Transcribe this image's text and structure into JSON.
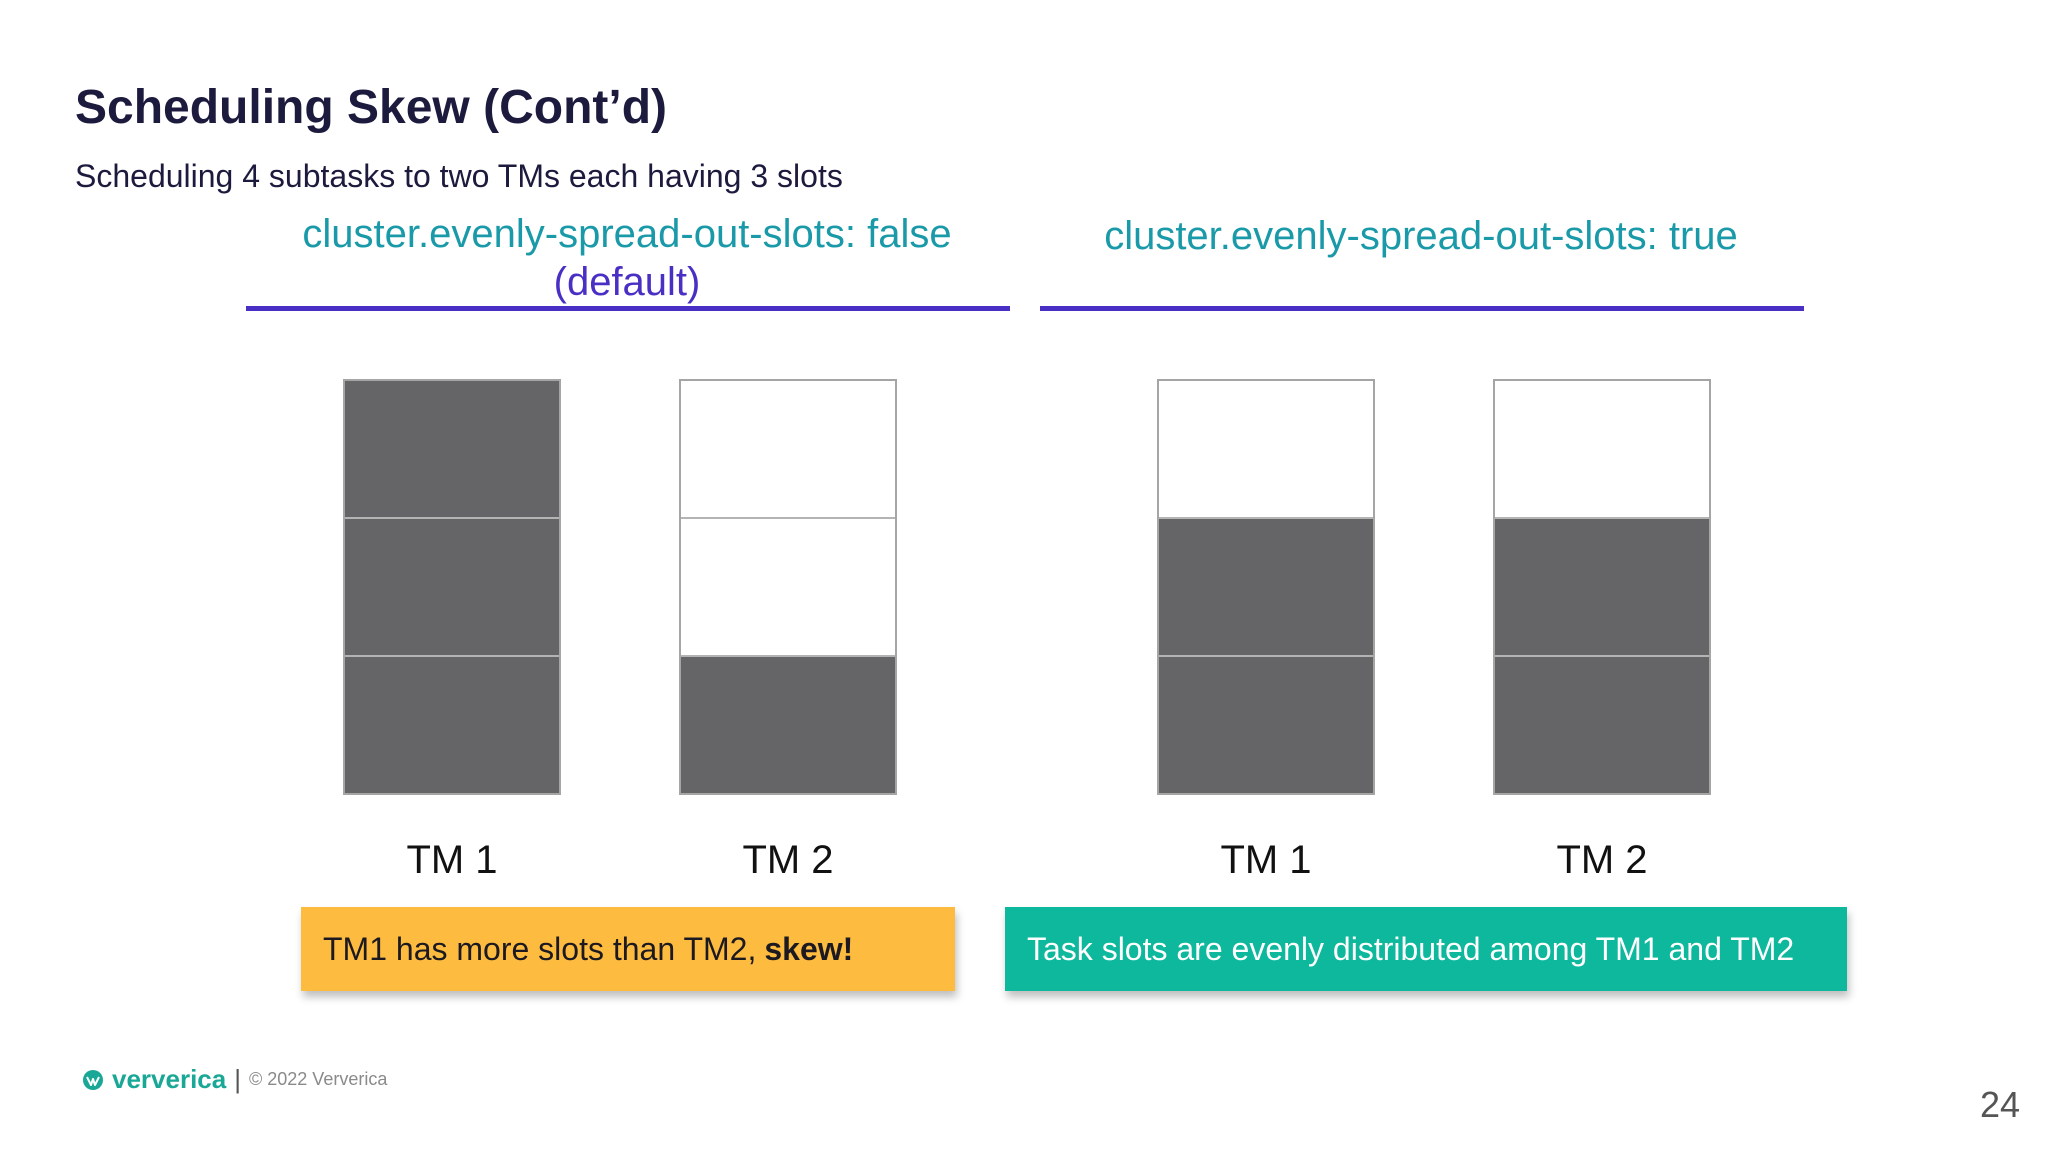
{
  "slide": {
    "title": "Scheduling Skew (Cont’d)",
    "subtitle": "Scheduling 4 subtasks to two TMs each having 3 slots",
    "page_number": "24"
  },
  "left": {
    "config_line1": "cluster.evenly-spread-out-slots: false",
    "config_line2": "(default)",
    "tm1_label": "TM 1",
    "tm2_label": "TM 2",
    "callout_text": "TM1 has more slots than TM2,",
    "callout_emphasis": "skew!",
    "callout_color": "#fdbb40",
    "tm1_slots": [
      "used",
      "used",
      "used"
    ],
    "tm2_slots": [
      "free",
      "free",
      "used"
    ]
  },
  "right": {
    "config_line1": "cluster.evenly-spread-out-slots: true",
    "tm1_label": "TM 1",
    "tm2_label": "TM 2",
    "callout_text": "Task slots  are evenly distributed among TM1 and TM2",
    "callout_color": "#0db89d",
    "tm1_slots": [
      "free",
      "used",
      "used"
    ],
    "tm2_slots": [
      "free",
      "used",
      "used"
    ]
  },
  "footer": {
    "brand": "ververica",
    "separator": "|",
    "copyright": "© 2022 Ververica",
    "brand_icon": "ververica-logo-icon"
  },
  "colors": {
    "title": "#1c1a3d",
    "config_teal": "#1a9aa8",
    "config_purple": "#4a2fc4",
    "slot_used": "#656466",
    "slot_free": "#ffffff"
  }
}
